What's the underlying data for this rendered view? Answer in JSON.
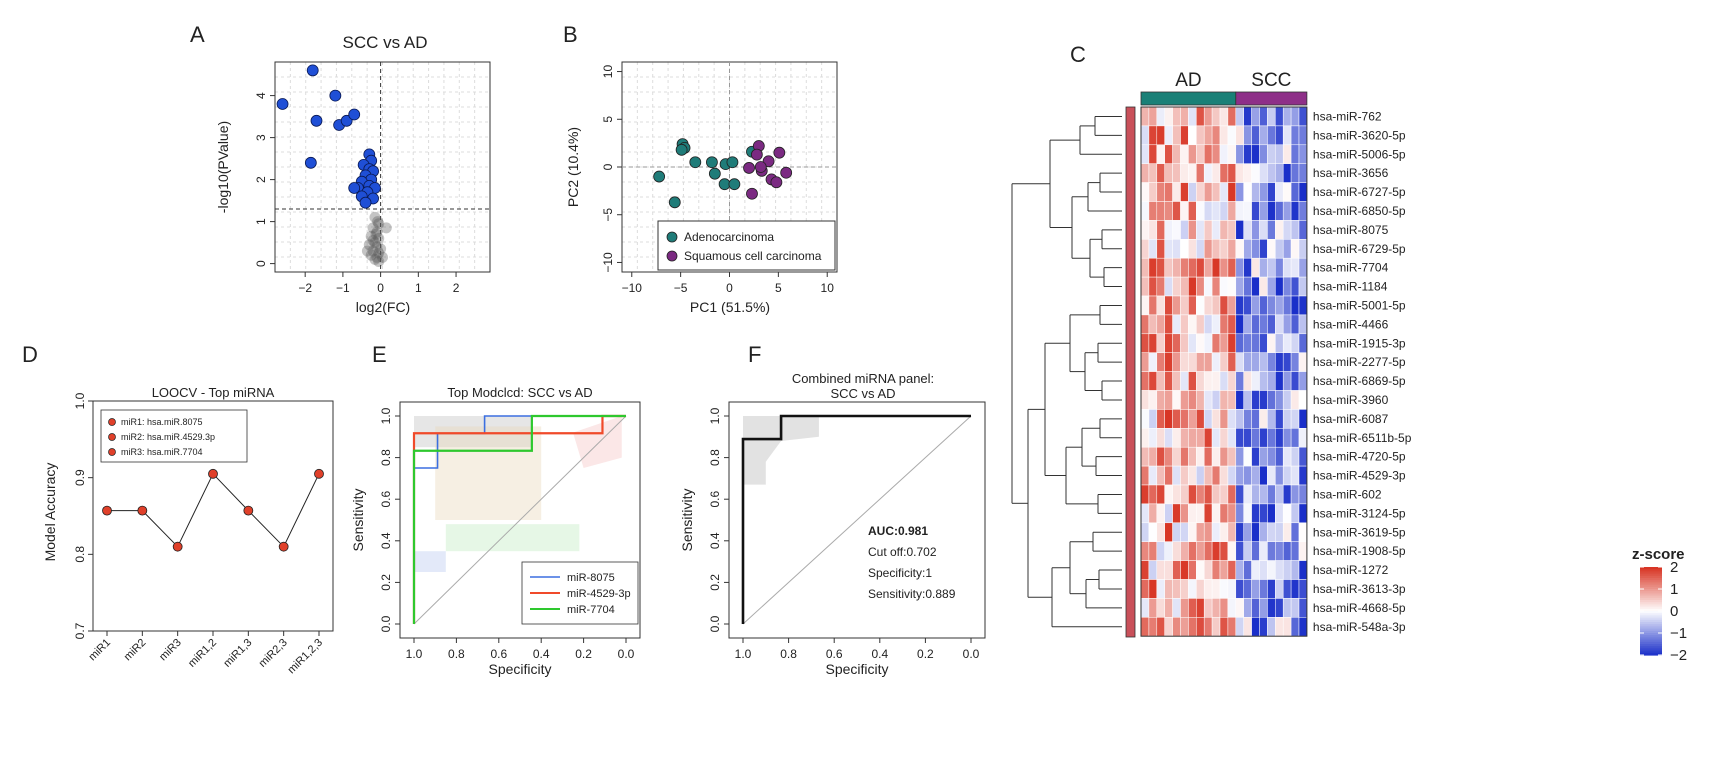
{
  "panels": {
    "A": {
      "letter": "A"
    },
    "B": {
      "letter": "B"
    },
    "C": {
      "letter": "C"
    },
    "D": {
      "letter": "D"
    },
    "E": {
      "letter": "E"
    },
    "F": {
      "letter": "F"
    }
  },
  "chart_data": [
    {
      "id": "A",
      "type": "scatter",
      "title": "SCC vs AD",
      "xlabel": "log2(FC)",
      "ylabel": "-log10(PValue)",
      "xlim": [
        -2.8,
        2.9
      ],
      "ylim": [
        -0.2,
        4.8
      ],
      "xticks": [
        -2,
        -1,
        0,
        1,
        2
      ],
      "yticks": [
        0,
        1,
        2,
        3,
        4
      ],
      "hlines": [
        1.3
      ],
      "vlines": [
        0
      ],
      "significant_color": "#1f4fd6",
      "nonsig_color": "#555555",
      "significant": [
        [
          -2.6,
          3.8
        ],
        [
          -1.8,
          4.6
        ],
        [
          -1.7,
          3.4
        ],
        [
          -1.2,
          4.0
        ],
        [
          -1.1,
          3.3
        ],
        [
          -0.9,
          3.4
        ],
        [
          -0.7,
          3.55
        ],
        [
          -1.85,
          2.4
        ],
        [
          -0.3,
          2.6
        ],
        [
          -0.25,
          2.45
        ],
        [
          -0.45,
          2.35
        ],
        [
          -0.3,
          2.25
        ],
        [
          -0.2,
          2.2
        ],
        [
          -0.4,
          2.1
        ],
        [
          -0.25,
          2.0
        ],
        [
          -0.5,
          1.95
        ],
        [
          -0.3,
          1.85
        ],
        [
          -0.15,
          1.8
        ],
        [
          -0.6,
          1.8
        ],
        [
          -0.35,
          1.7
        ],
        [
          -0.5,
          1.6
        ],
        [
          -0.2,
          1.55
        ],
        [
          -0.4,
          1.45
        ],
        [
          -0.7,
          1.8
        ]
      ],
      "nonsignificant": [
        [
          -0.15,
          1.1
        ],
        [
          -0.05,
          0.95
        ],
        [
          -0.2,
          0.85
        ],
        [
          -0.1,
          0.75
        ],
        [
          0.15,
          0.85
        ],
        [
          -0.25,
          0.65
        ],
        [
          -0.05,
          0.6
        ],
        [
          -0.15,
          0.5
        ],
        [
          -0.3,
          0.45
        ],
        [
          -0.1,
          0.4
        ],
        [
          0.0,
          0.35
        ],
        [
          -0.2,
          0.3
        ],
        [
          -0.05,
          0.25
        ],
        [
          -0.35,
          0.3
        ],
        [
          -0.1,
          0.15
        ],
        [
          -0.15,
          0.1
        ],
        [
          -0.25,
          0.2
        ],
        [
          0.05,
          0.15
        ],
        [
          -0.05,
          0.05
        ],
        [
          -0.2,
          0.55
        ],
        [
          -0.08,
          1.0
        ],
        [
          -0.12,
          0.7
        ]
      ]
    },
    {
      "id": "B",
      "type": "scatter",
      "title": "",
      "xlabel": "PC1 (51.5%)",
      "ylabel": "PC2 (10.4%)",
      "xlim": [
        -11,
        11
      ],
      "ylim": [
        -11,
        11
      ],
      "xticks": [
        -10,
        -5,
        0,
        5,
        10
      ],
      "yticks": [
        -10,
        -5,
        0,
        5,
        10
      ],
      "legend_position": "bottom-right",
      "series": [
        {
          "name": "Adenocarcinoma",
          "color": "#1f7c79",
          "points": [
            [
              -4.8,
              2.4
            ],
            [
              -4.6,
              2.0
            ],
            [
              -4.9,
              1.8
            ],
            [
              -3.5,
              0.5
            ],
            [
              -1.8,
              0.5
            ],
            [
              -0.4,
              0.3
            ],
            [
              0.3,
              0.5
            ],
            [
              -1.5,
              -0.7
            ],
            [
              -0.5,
              -1.8
            ],
            [
              0.5,
              -1.8
            ],
            [
              -7.2,
              -1.0
            ],
            [
              -5.6,
              -3.7
            ],
            [
              2.3,
              1.6
            ]
          ]
        },
        {
          "name": "Squamous cell carcinoma",
          "color": "#7b2a82",
          "points": [
            [
              3.0,
              2.2
            ],
            [
              2.8,
              1.3
            ],
            [
              5.1,
              1.5
            ],
            [
              4.0,
              0.6
            ],
            [
              2.0,
              -0.1
            ],
            [
              3.3,
              -0.4
            ],
            [
              5.8,
              -0.6
            ],
            [
              4.3,
              -1.3
            ],
            [
              4.8,
              -1.6
            ],
            [
              2.3,
              -2.8
            ],
            [
              3.2,
              0.0
            ]
          ]
        }
      ]
    },
    {
      "id": "C",
      "type": "heatmap",
      "groups": [
        {
          "name": "AD",
          "color": "#1a8077",
          "columns": 12
        },
        {
          "name": "SCC",
          "color": "#8e2f88",
          "columns": 9
        }
      ],
      "rows": [
        "hsa-miR-762",
        "hsa-miR-3620-5p",
        "hsa-miR-5006-5p",
        "hsa-miR-3656",
        "hsa-miR-6727-5p",
        "hsa-miR-6850-5p",
        "hsa-miR-8075",
        "hsa-miR-6729-5p",
        "hsa-miR-7704",
        "hsa-miR-1184",
        "hsa-miR-5001-5p",
        "hsa-miR-4466",
        "hsa-miR-1915-3p",
        "hsa-miR-2277-5p",
        "hsa-miR-6869-5p",
        "hsa-miR-3960",
        "hsa-miR-6087",
        "hsa-miR-6511b-5p",
        "hsa-miR-4720-5p",
        "hsa-miR-4529-3p",
        "hsa-miR-602",
        "hsa-miR-3124-5p",
        "hsa-miR-3619-5p",
        "hsa-miR-1908-5p",
        "hsa-miR-1272",
        "hsa-miR-3613-3p",
        "hsa-miR-4668-5p",
        "hsa-miR-548a-3p"
      ],
      "legend": {
        "title": "z-score",
        "ticks": [
          "2",
          "1",
          "0",
          "−1",
          "−2"
        ],
        "range": [
          -2,
          2
        ],
        "low_color": "#1a2fc9",
        "mid_color": "#ffffff",
        "high_color": "#d7301f"
      },
      "side_bar_color": "#c9505a"
    },
    {
      "id": "D",
      "type": "line",
      "title": "LOOCV - Top miRNA",
      "xlabel": "",
      "ylabel": "Model Accuracy",
      "categories": [
        "miR1",
        "miR2",
        "miR3",
        "miR1,2",
        "miR1,3",
        "miR2,3",
        "miR1,2,3"
      ],
      "values": [
        0.857,
        0.857,
        0.81,
        0.905,
        0.857,
        0.81,
        0.905
      ],
      "ylim": [
        0.7,
        1.0
      ],
      "yticks": [
        "0.7",
        "0.8",
        "0.9",
        "1.0"
      ],
      "point_color": "#e0402a",
      "legend": [
        "miR1: hsa.miR.8075",
        "miR2: hsa.miR.4529.3p",
        "miR3: hsa.miR.7704"
      ]
    },
    {
      "id": "E",
      "type": "line",
      "title": "Top Modclcd: SCC vs AD",
      "xlabel": "Specificity",
      "ylabel": "Sensitivity",
      "xticks": [
        "1.0",
        "0.8",
        "0.6",
        "0.4",
        "0.2",
        "0.0"
      ],
      "yticks": [
        "0.0",
        "0.2",
        "0.4",
        "0.6",
        "0.8",
        "1.0"
      ],
      "series": [
        {
          "name": "miR-8075",
          "color": "#3b6fe0",
          "points": [
            [
              1,
              0
            ],
            [
              1,
              0.75
            ],
            [
              0.889,
              0.75
            ],
            [
              0.889,
              0.917
            ],
            [
              0.667,
              0.917
            ],
            [
              0.667,
              1
            ],
            [
              0.444,
              1
            ],
            [
              0,
              1
            ]
          ]
        },
        {
          "name": "miR-4529-3p",
          "color": "#f04a2a",
          "points": [
            [
              1,
              0
            ],
            [
              1,
              0.917
            ],
            [
              0.111,
              0.917
            ],
            [
              0.111,
              1
            ],
            [
              0,
              1
            ]
          ]
        },
        {
          "name": "miR-7704",
          "color": "#2ec82e",
          "points": [
            [
              1,
              0
            ],
            [
              1,
              0.833
            ],
            [
              0.444,
              0.833
            ],
            [
              0.444,
              1
            ],
            [
              0,
              1
            ]
          ]
        }
      ]
    },
    {
      "id": "F",
      "type": "line",
      "title": "Combined miRNA panel:",
      "subtitle": "SCC vs AD",
      "xlabel": "Specificity",
      "ylabel": "Sensitivity",
      "xticks": [
        "1.0",
        "0.8",
        "0.6",
        "0.4",
        "0.2",
        "0.0"
      ],
      "yticks": [
        "0.0",
        "0.2",
        "0.4",
        "0.6",
        "0.8",
        "1.0"
      ],
      "series": [
        {
          "name": "Combined",
          "color": "#111111",
          "points": [
            [
              1,
              0
            ],
            [
              1,
              0.889
            ],
            [
              0.833,
              0.889
            ],
            [
              0.833,
              1
            ],
            [
              0,
              1
            ]
          ]
        }
      ],
      "annotations": {
        "auc": "AUC:0.981",
        "cutoff": "Cut off:0.702",
        "specificity": "Specificity:1",
        "sensitivity": "Sensitivity:0.889"
      }
    }
  ]
}
